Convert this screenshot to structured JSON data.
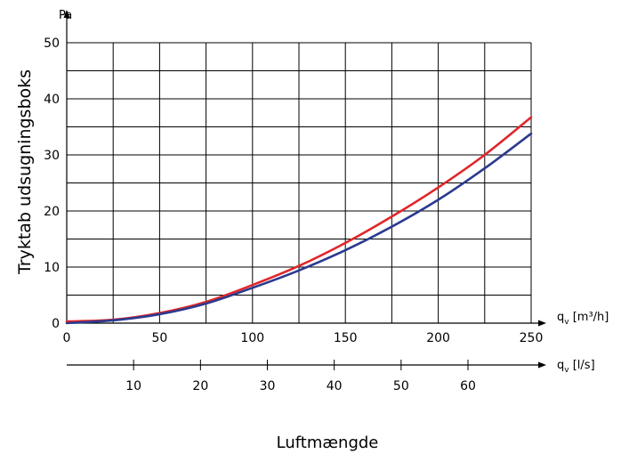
{
  "chart_data": {
    "type": "line",
    "title": "",
    "ylabel": "Tryktab udsugningsboks",
    "yunit": "Pa",
    "xlabel": "Luftmængde",
    "xunit": "qv [m³/h]",
    "x2unit": "qv [l/s]",
    "xlim": [
      0,
      250
    ],
    "ylim": [
      0,
      50
    ],
    "xticks": [
      "0",
      "50",
      "100",
      "150",
      "200",
      "250"
    ],
    "yticks": [
      "0",
      "10",
      "20",
      "30",
      "40",
      "50"
    ],
    "x2ticks": [
      "10",
      "20",
      "30",
      "40",
      "50",
      "60"
    ],
    "grid": true,
    "series": [
      {
        "color": "#e0262b",
        "x": [
          0,
          25,
          50,
          75,
          100,
          125,
          150,
          175,
          200,
          225,
          250
        ],
        "y": [
          0.3,
          0.6,
          1.8,
          3.8,
          6.8,
          10.2,
          14.3,
          19.0,
          24.2,
          30.0,
          36.7
        ]
      },
      {
        "color": "#2b3a8f",
        "x": [
          0,
          25,
          50,
          75,
          100,
          125,
          150,
          175,
          200,
          225,
          250
        ],
        "y": [
          0.0,
          0.5,
          1.6,
          3.5,
          6.3,
          9.4,
          13.0,
          17.2,
          22.0,
          27.6,
          33.8
        ]
      }
    ]
  }
}
